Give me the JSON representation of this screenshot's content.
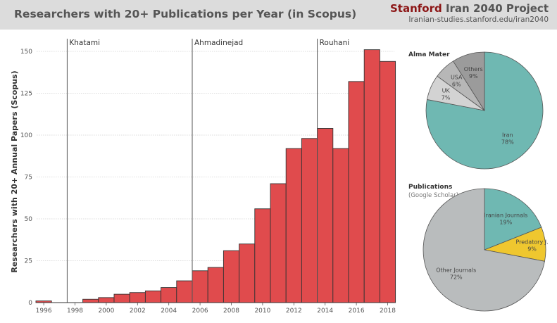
{
  "header": {
    "title": "Researchers with 20+ Publications per Year (in Scopus)",
    "brand_word": "Stanford",
    "brand_rest": "Iran 2040 Project",
    "brand_url": "Iranian-studies.stanford.edu/iran2040"
  },
  "colors": {
    "bar": "#e04b4d",
    "teal": "#6fb8b2",
    "light_gray": "#d3d3d3",
    "mid_gray": "#b7b7b7",
    "dark_gray": "#9b9b9b",
    "yellow": "#efc72f",
    "other_gray": "#b9bcbd"
  },
  "chart_data": [
    {
      "type": "bar",
      "ylabel": "Researchers with 20+ Annual Papers (Scopus)",
      "ylim": [
        0,
        150
      ],
      "yticks": [
        0,
        25,
        50,
        75,
        100,
        125,
        150
      ],
      "xticks": [
        1996,
        1998,
        2000,
        2002,
        2004,
        2006,
        2008,
        2010,
        2012,
        2014,
        2016,
        2018
      ],
      "grid": true,
      "categories": [
        1996,
        1997,
        1998,
        1999,
        2000,
        2001,
        2002,
        2003,
        2004,
        2005,
        2006,
        2007,
        2008,
        2009,
        2010,
        2011,
        2012,
        2013,
        2014,
        2015,
        2016,
        2017,
        2018
      ],
      "values": [
        1,
        0,
        0,
        2,
        3,
        5,
        6,
        7,
        9,
        13,
        19,
        21,
        31,
        35,
        56,
        71,
        92,
        98,
        104,
        92,
        132,
        151,
        144
      ],
      "annotations": [
        {
          "year": 1997,
          "label": "Khatami"
        },
        {
          "year": 2005,
          "label": "Ahmadinejad"
        },
        {
          "year": 2013,
          "label": "Rouhani"
        }
      ]
    },
    {
      "type": "pie",
      "title": "Alma Mater",
      "slices": [
        {
          "label": "Iran",
          "pct_label": "78%",
          "value": 78,
          "color_key": "teal"
        },
        {
          "label": "UK",
          "pct_label": "7%",
          "value": 7,
          "color_key": "light_gray"
        },
        {
          "label": "USA",
          "pct_label": "6%",
          "value": 6,
          "color_key": "mid_gray"
        },
        {
          "label": "Others",
          "pct_label": "9%",
          "value": 9,
          "color_key": "dark_gray"
        }
      ]
    },
    {
      "type": "pie",
      "title": "Publications",
      "subtitle": "(Google Scholar)",
      "slices": [
        {
          "label": "Iranian Journals",
          "pct_label": "19%",
          "value": 19,
          "color_key": "teal"
        },
        {
          "label": "Predatory J.",
          "pct_label": "9%",
          "value": 9,
          "color_key": "yellow"
        },
        {
          "label": "Other Journals",
          "pct_label": "72%",
          "value": 72,
          "color_key": "other_gray"
        }
      ]
    }
  ]
}
